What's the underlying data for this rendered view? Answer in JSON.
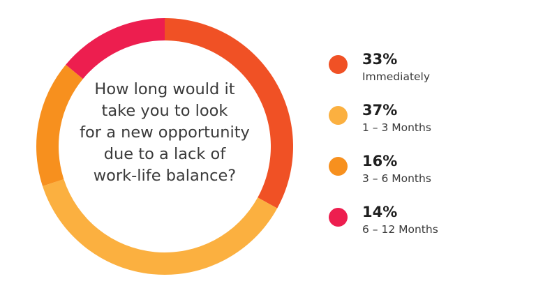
{
  "chart_data": {
    "type": "pie",
    "donut": true,
    "title": "",
    "center_lines": [
      "How long would it",
      "take you to look",
      "for a new opportunity",
      "due to a lack of",
      "work-life balance?"
    ],
    "legend_position": "right",
    "slices": [
      {
        "label": "Immediately",
        "value": 33,
        "display": "33%",
        "color": "#f05125"
      },
      {
        "label": "1 – 3 Months",
        "value": 37,
        "display": "37%",
        "color": "#fbb040"
      },
      {
        "label": "3 – 6 Months",
        "value": 16,
        "display": "16%",
        "color": "#f7901e"
      },
      {
        "label": "6 – 12 Months",
        "value": 14,
        "display": "14%",
        "color": "#ed1e4f"
      }
    ]
  }
}
